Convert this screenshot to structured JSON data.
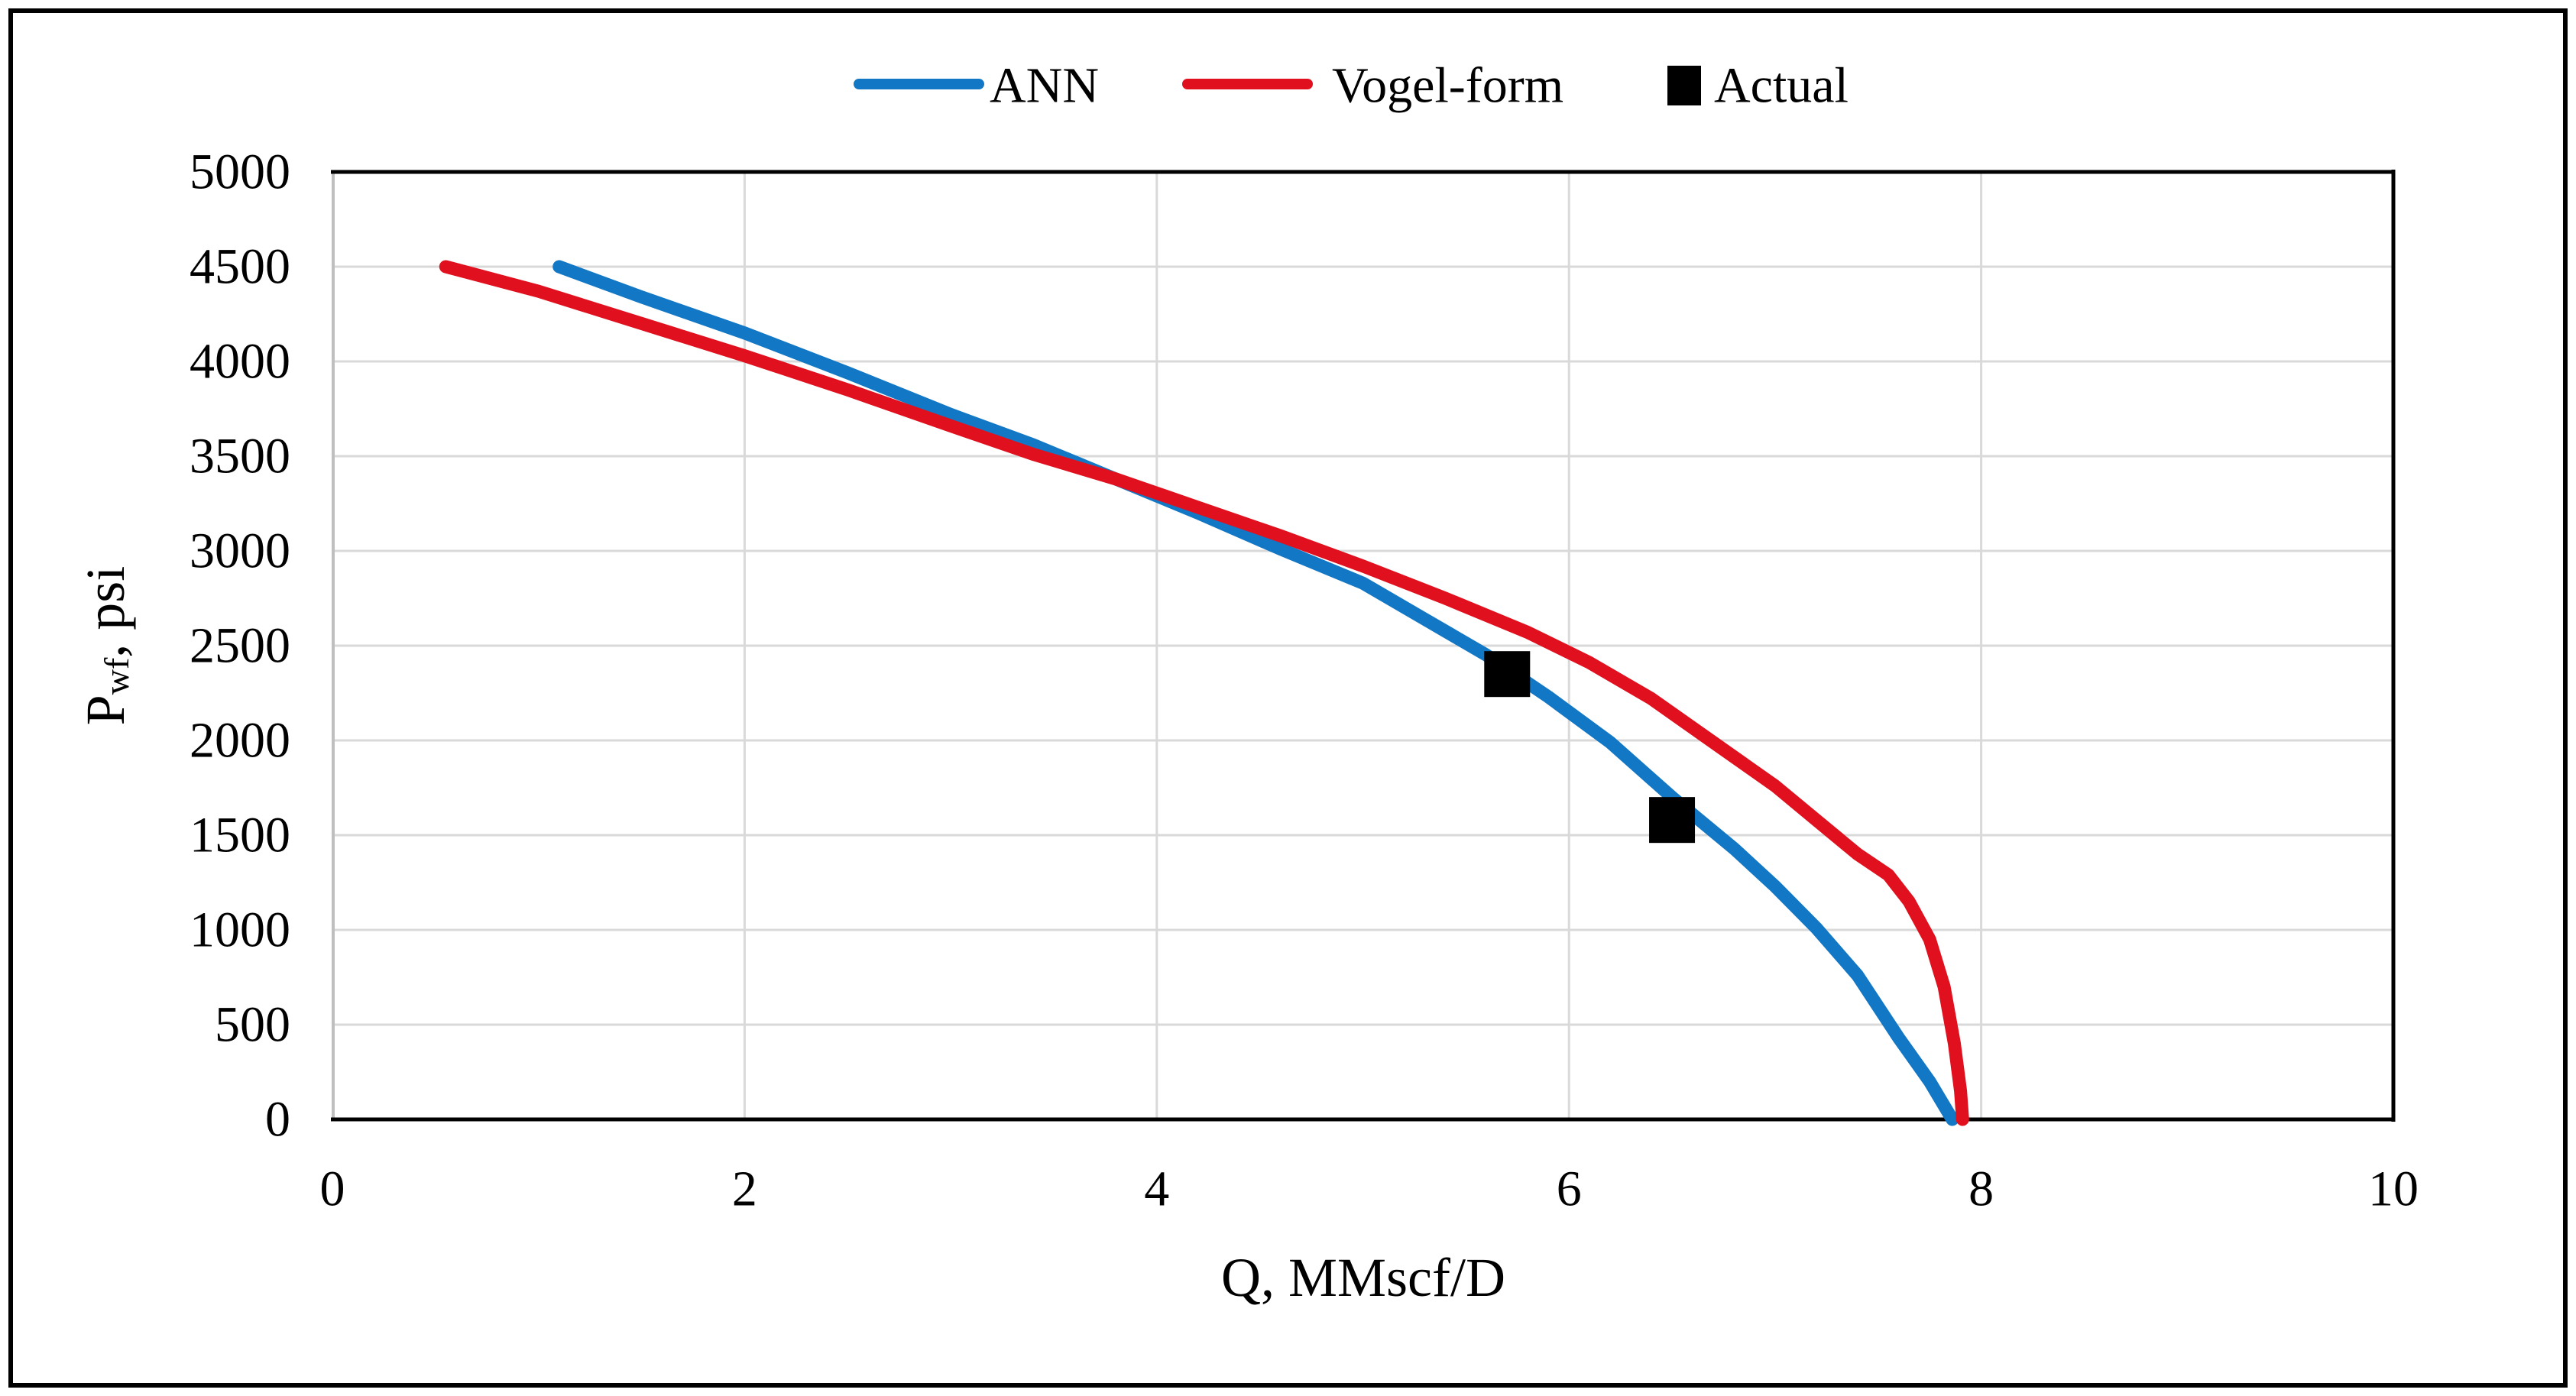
{
  "figure": {
    "background": "#ffffff",
    "border_color": "#000000",
    "plot_frame_color": "#000000",
    "left_axis_color": "#bfbfbf",
    "gridline_color": "#d9d9d9"
  },
  "legend": {
    "items": [
      {
        "label": "ANN",
        "marker": "line",
        "color": "#1277c4"
      },
      {
        "label": "Vogel-form",
        "marker": "line",
        "color": "#e1101e"
      },
      {
        "label": "Actual",
        "marker": "square",
        "color": "#000000"
      }
    ]
  },
  "chart_data": {
    "type": "line",
    "title": "",
    "xlabel": "Q, MMscf/D",
    "ylabel": "Pwf, psi",
    "ylabel_parts": {
      "main": "P",
      "sub": "wf",
      "rest": ", psi"
    },
    "xlim": [
      0,
      10
    ],
    "ylim": [
      0,
      5000
    ],
    "x_ticks": [
      0,
      2,
      4,
      6,
      8,
      10
    ],
    "y_ticks": [
      0,
      500,
      1000,
      1500,
      2000,
      2500,
      3000,
      3500,
      4000,
      4500,
      5000
    ],
    "grid": true,
    "legend_position": "top-center",
    "series": [
      {
        "name": "ANN",
        "type": "line",
        "color": "#1277c4",
        "points": [
          [
            1.1,
            4500
          ],
          [
            1.5,
            4340
          ],
          [
            2.0,
            4150
          ],
          [
            2.5,
            3940
          ],
          [
            3.0,
            3720
          ],
          [
            3.4,
            3560
          ],
          [
            3.8,
            3380
          ],
          [
            4.2,
            3200
          ],
          [
            4.6,
            3010
          ],
          [
            5.0,
            2830
          ],
          [
            5.3,
            2640
          ],
          [
            5.6,
            2450
          ],
          [
            5.9,
            2230
          ],
          [
            6.2,
            1990
          ],
          [
            6.5,
            1700
          ],
          [
            6.8,
            1430
          ],
          [
            7.0,
            1230
          ],
          [
            7.2,
            1010
          ],
          [
            7.4,
            760
          ],
          [
            7.6,
            430
          ],
          [
            7.75,
            200
          ],
          [
            7.86,
            0
          ]
        ]
      },
      {
        "name": "Vogel-form",
        "type": "line",
        "color": "#e1101e",
        "points": [
          [
            0.55,
            4500
          ],
          [
            1.0,
            4370
          ],
          [
            1.5,
            4200
          ],
          [
            2.0,
            4030
          ],
          [
            2.5,
            3850
          ],
          [
            3.0,
            3660
          ],
          [
            3.4,
            3510
          ],
          [
            3.8,
            3380
          ],
          [
            4.2,
            3230
          ],
          [
            4.6,
            3080
          ],
          [
            5.0,
            2920
          ],
          [
            5.4,
            2750
          ],
          [
            5.8,
            2570
          ],
          [
            6.1,
            2410
          ],
          [
            6.4,
            2220
          ],
          [
            6.7,
            1990
          ],
          [
            7.0,
            1760
          ],
          [
            7.2,
            1580
          ],
          [
            7.4,
            1400
          ],
          [
            7.55,
            1290
          ],
          [
            7.65,
            1150
          ],
          [
            7.75,
            950
          ],
          [
            7.82,
            700
          ],
          [
            7.87,
            400
          ],
          [
            7.9,
            150
          ],
          [
            7.91,
            0
          ]
        ]
      },
      {
        "name": "Actual",
        "type": "scatter",
        "marker": "square",
        "color": "#000000",
        "points": [
          [
            5.7,
            2350
          ],
          [
            6.5,
            1580
          ]
        ]
      }
    ]
  }
}
